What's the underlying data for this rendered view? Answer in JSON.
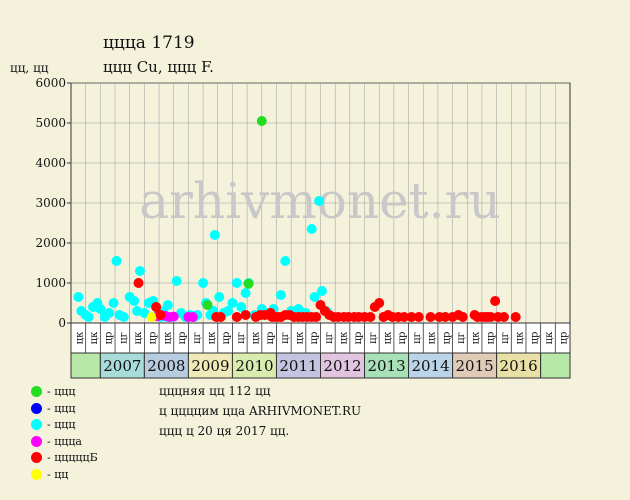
{
  "chart_title": "ццца 1719",
  "chart_subtitle": "ццц Cu, ццц F.",
  "y_axis_label": "цц, цц",
  "info": {
    "line1": "цццняя цц 112 цц",
    "line2": "ц ццццим цца ARHIVMONET.RU",
    "line3": "ццц ц 20 ця 2017 цц."
  },
  "watermark": "arhivmonet.ru",
  "legend": [
    {
      "label": "- ццц",
      "color": "#22dd22"
    },
    {
      "label": "- ццц",
      "color": "#0000ff"
    },
    {
      "label": "- ццц",
      "color": "#00ffff"
    },
    {
      "label": "- цццa",
      "color": "#ff00ff"
    },
    {
      "label": "- цццццБ",
      "color": "#ff0000"
    },
    {
      "label": "- цц",
      "color": "#ffff00"
    }
  ],
  "chart_data": {
    "type": "scatter",
    "ylim": [
      0,
      6000
    ],
    "y_ticks": [
      0,
      1000,
      2000,
      3000,
      4000,
      5000,
      6000
    ],
    "grid": true,
    "sub_labels": [
      "цк",
      "цк",
      "цр",
      "цг",
      "цк",
      "цр",
      "цк",
      "цр",
      "цг",
      "цк",
      "цр",
      "цг",
      "цк",
      "цр",
      "цг",
      "цк",
      "цр",
      "цг",
      "цк",
      "цр",
      "цг",
      "цк",
      "цр",
      "цг",
      "цк",
      "цр",
      "цг",
      "цк",
      "цр",
      "цг",
      "цк",
      "цр",
      "цк",
      "цр"
    ],
    "years": [
      {
        "label": "2007",
        "color": "#a8dcd8"
      },
      {
        "label": "2008",
        "color": "#b8cce0"
      },
      {
        "label": "2009",
        "color": "#f0eab8"
      },
      {
        "label": "2010",
        "color": "#d8ecb0"
      },
      {
        "label": "2011",
        "color": "#c4c4e0"
      },
      {
        "label": "2012",
        "color": "#e0c4e0"
      },
      {
        "label": "2013",
        "color": "#a8e0b8"
      },
      {
        "label": "2014",
        "color": "#bcd4e8"
      },
      {
        "label": "2015",
        "color": "#e0cab8"
      },
      {
        "label": "2016",
        "color": "#e8e0a4"
      }
    ],
    "series": [
      {
        "color": "#00ffff",
        "points": [
          [
            0.5,
            650
          ],
          [
            0.7,
            300
          ],
          [
            1.0,
            200
          ],
          [
            1.2,
            150
          ],
          [
            1.5,
            400
          ],
          [
            1.8,
            500
          ],
          [
            2.0,
            350
          ],
          [
            2.3,
            150
          ],
          [
            2.6,
            250
          ],
          [
            2.9,
            500
          ],
          [
            3.1,
            1550
          ],
          [
            3.3,
            200
          ],
          [
            3.6,
            150
          ],
          [
            4.0,
            650
          ],
          [
            4.3,
            550
          ],
          [
            4.5,
            300
          ],
          [
            4.7,
            1300
          ],
          [
            5.0,
            250
          ],
          [
            5.3,
            500
          ],
          [
            5.6,
            550
          ],
          [
            5.9,
            200
          ],
          [
            6.1,
            150
          ],
          [
            6.3,
            300
          ],
          [
            6.6,
            450
          ],
          [
            6.9,
            150
          ],
          [
            7.2,
            1050
          ],
          [
            7.5,
            250
          ],
          [
            7.8,
            150
          ],
          [
            8.1,
            200
          ],
          [
            8.4,
            150
          ],
          [
            8.6,
            200
          ],
          [
            9.0,
            1000
          ],
          [
            9.2,
            500
          ],
          [
            9.5,
            200
          ],
          [
            9.8,
            2200
          ],
          [
            10.1,
            650
          ],
          [
            10.4,
            250
          ],
          [
            10.7,
            300
          ],
          [
            11.0,
            500
          ],
          [
            11.3,
            1000
          ],
          [
            11.6,
            400
          ],
          [
            11.9,
            750
          ],
          [
            12.1,
            1000
          ],
          [
            12.5,
            200
          ],
          [
            13.0,
            350
          ],
          [
            13.3,
            250
          ],
          [
            13.8,
            350
          ],
          [
            14.3,
            700
          ],
          [
            14.6,
            1550
          ],
          [
            15.0,
            300
          ],
          [
            15.5,
            350
          ],
          [
            16.0,
            250
          ],
          [
            16.4,
            2350
          ],
          [
            16.6,
            650
          ],
          [
            16.9,
            3050
          ],
          [
            17.1,
            800
          ],
          [
            17.4,
            300
          ],
          [
            6.5,
            150
          ],
          [
            9.7,
            300
          ]
        ]
      },
      {
        "color": "#22dd22",
        "points": [
          [
            9.3,
            450
          ],
          [
            12.1,
            980
          ]
        ]
      },
      {
        "color": "#22dd22",
        "points": [
          [
            13.0,
            5050
          ]
        ]
      },
      {
        "color": "#ff00ff",
        "points": [
          [
            5.9,
            170
          ],
          [
            6.4,
            180
          ],
          [
            6.7,
            150
          ],
          [
            7.0,
            160
          ],
          [
            8.0,
            150
          ],
          [
            8.3,
            150
          ]
        ]
      },
      {
        "color": "#ffff00",
        "points": [
          [
            5.5,
            150
          ]
        ]
      },
      {
        "color": "#ff0000",
        "points": [
          [
            4.6,
            1000
          ],
          [
            5.8,
            400
          ],
          [
            6.1,
            200
          ],
          [
            9.9,
            150
          ],
          [
            10.2,
            150
          ],
          [
            11.3,
            150
          ],
          [
            11.9,
            200
          ],
          [
            12.6,
            150
          ],
          [
            12.9,
            200
          ],
          [
            13.2,
            200
          ],
          [
            13.6,
            250
          ],
          [
            13.9,
            150
          ],
          [
            14.1,
            150
          ],
          [
            14.3,
            150
          ],
          [
            14.6,
            200
          ],
          [
            14.9,
            200
          ],
          [
            15.2,
            150
          ],
          [
            15.5,
            150
          ],
          [
            15.8,
            150
          ],
          [
            16.1,
            150
          ],
          [
            16.4,
            150
          ],
          [
            16.7,
            150
          ],
          [
            17.0,
            450
          ],
          [
            17.3,
            300
          ],
          [
            17.6,
            200
          ],
          [
            17.9,
            150
          ],
          [
            18.2,
            150
          ],
          [
            18.6,
            150
          ],
          [
            18.9,
            150
          ],
          [
            19.3,
            150
          ],
          [
            19.6,
            150
          ],
          [
            20.0,
            150
          ],
          [
            20.4,
            150
          ],
          [
            20.7,
            400
          ],
          [
            21.0,
            500
          ],
          [
            21.3,
            150
          ],
          [
            21.6,
            200
          ],
          [
            21.9,
            150
          ],
          [
            22.3,
            150
          ],
          [
            22.7,
            150
          ],
          [
            23.2,
            150
          ],
          [
            23.7,
            150
          ],
          [
            24.5,
            150
          ],
          [
            25.1,
            150
          ],
          [
            25.5,
            150
          ],
          [
            26.0,
            150
          ],
          [
            26.4,
            200
          ],
          [
            26.7,
            150
          ],
          [
            27.5,
            200
          ],
          [
            27.7,
            150
          ],
          [
            28.0,
            150
          ],
          [
            28.2,
            150
          ],
          [
            28.4,
            150
          ],
          [
            28.6,
            150
          ],
          [
            28.9,
            550
          ],
          [
            29.1,
            150
          ],
          [
            29.5,
            150
          ],
          [
            30.3,
            150
          ],
          [
            13.7,
            150
          ]
        ]
      }
    ]
  }
}
